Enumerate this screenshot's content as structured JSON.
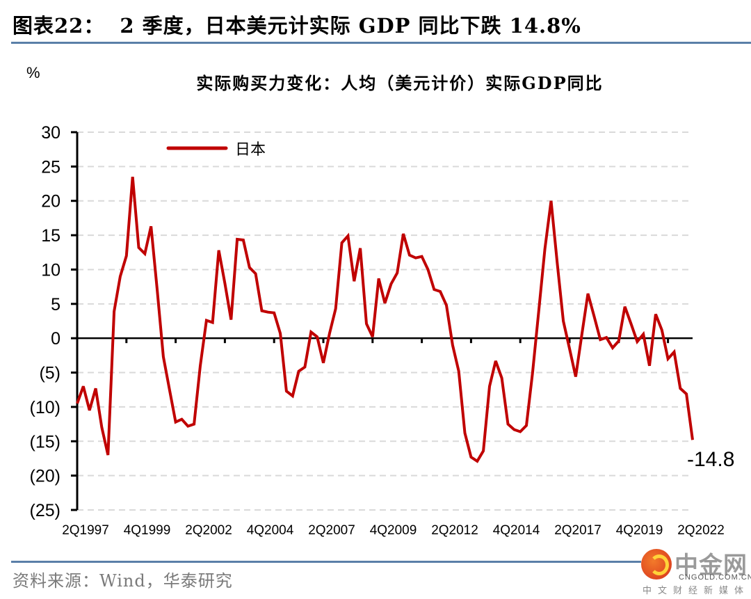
{
  "figure": {
    "label": "图表22：",
    "title": "2 季度，日本美元计实际 GDP 同比下跌 14.8%"
  },
  "source": "资料来源：Wind，华泰研究",
  "logo": {
    "brand": "中金网",
    "domain": "CNGOLD.COM.CN",
    "tagline": "中文财经新媒体"
  },
  "colors": {
    "series": "#c00000",
    "grid": "#d9d9d9",
    "rule": "#5a7fa8"
  },
  "chart_data": {
    "type": "line",
    "title": "实际购买力变化：人均（美元计价）实际GDP同比",
    "unit_label": "%",
    "xlabel": "",
    "ylabel": "%",
    "ylim": [
      -25,
      30
    ],
    "yticks": [
      30,
      25,
      20,
      15,
      10,
      5,
      0,
      -5,
      -10,
      -15,
      -20,
      -25
    ],
    "ytick_labels": [
      "30",
      "25",
      "20",
      "15",
      "10",
      "5",
      "0",
      "(5)",
      "(10)",
      "(15)",
      "(20)",
      "(25)"
    ],
    "grid": true,
    "legend": {
      "position": "top-left",
      "entries": [
        "日本"
      ]
    },
    "x_start": "2Q1997",
    "x_end": "2Q2022",
    "frequency": "quarterly",
    "xtick_labels": [
      "2Q1997",
      "4Q1999",
      "2Q2002",
      "4Q2004",
      "2Q2007",
      "4Q2009",
      "2Q2012",
      "4Q2014",
      "2Q2017",
      "4Q2019",
      "2Q2022"
    ],
    "annotation": {
      "text": "-14.8",
      "at": "2Q2022"
    },
    "series": [
      {
        "name": "日本",
        "values": [
          -9.5,
          -7.0,
          -10.5,
          -7.3,
          -13.0,
          -17.0,
          3.9,
          9.0,
          12.0,
          23.5,
          13.2,
          12.3,
          16.3,
          7.0,
          -2.7,
          -7.5,
          -12.2,
          -11.8,
          -12.8,
          -12.5,
          -4.0,
          2.6,
          2.3,
          12.8,
          8.0,
          2.7,
          14.4,
          14.3,
          10.3,
          9.4,
          4.0,
          3.8,
          3.7,
          0.7,
          -7.7,
          -8.4,
          -4.8,
          -4.2,
          0.9,
          0.2,
          -3.6,
          0.7,
          4.3,
          13.9,
          14.9,
          8.3,
          13.1,
          2.1,
          0.2,
          8.7,
          5.1,
          7.9,
          9.5,
          15.2,
          12.1,
          11.7,
          11.9,
          10.0,
          7.1,
          6.8,
          4.8,
          -1.0,
          -4.8,
          -13.8,
          -17.3,
          -17.9,
          -16.4,
          -7.0,
          -3.3,
          -5.8,
          -12.5,
          -13.3,
          -13.6,
          -12.7,
          -5.0,
          4.0,
          13.0,
          20.0,
          11.0,
          2.5,
          -1.5,
          -5.6,
          0.5,
          6.5,
          3.2,
          -0.2,
          0.1,
          -1.4,
          -0.4,
          4.6,
          2.1,
          -0.5,
          0.6,
          -4.0,
          3.5,
          1.2,
          -3.0,
          -2.0,
          -7.3,
          -8.1,
          -14.8
        ]
      }
    ]
  }
}
